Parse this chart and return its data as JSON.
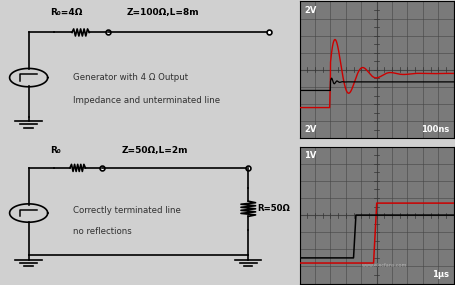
{
  "bg_color": "#d0d0d0",
  "scope1_label_top": "2V",
  "scope1_label_bot": "2V",
  "scope1_time": "100ns",
  "scope2_label_top": "1V",
  "scope2_time": "1μs",
  "text1_line1": "Generator with 4 Ω Output",
  "text1_line2": "Impedance and unterminated line",
  "text2_line1": "Correctly terminated line",
  "text2_line2": "no reflections",
  "circuit1_r0": "R₀=4Ω",
  "circuit1_z": "Z=100Ω,L=8m",
  "circuit2_r0": "R₀",
  "circuit2_z": "Z=50Ω,L=2m",
  "circuit2_r": "R=50Ω"
}
